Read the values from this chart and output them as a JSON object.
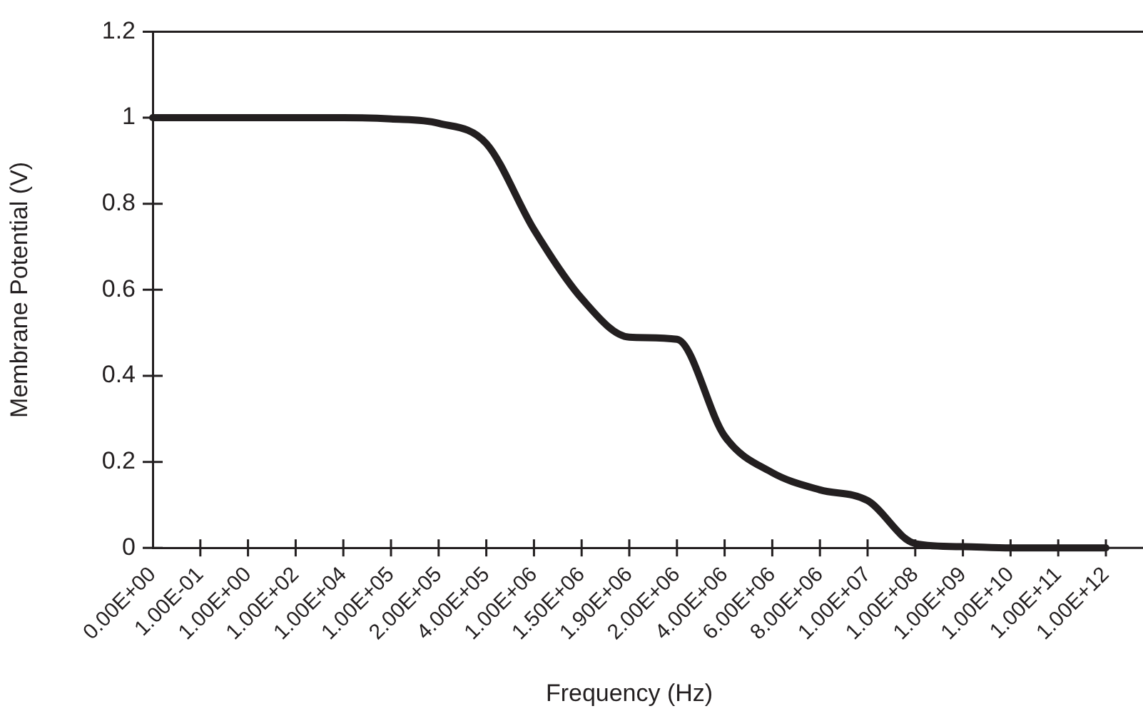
{
  "chart_data": {
    "type": "line",
    "xlabel": "Frequency (Hz)",
    "ylabel": "Membrane Potential (V)",
    "categories": [
      "0.00E+00",
      "1.00E-01",
      "1.00E+00",
      "1.00E+02",
      "1.00E+04",
      "1.00E+05",
      "2.00E+05",
      "4.00E+05",
      "1.00E+06",
      "1.50E+06",
      "1.90E+06",
      "2.00E+06",
      "4.00E+06",
      "6.00E+06",
      "8.00E+06",
      "1.00E+07",
      "1.00E+08",
      "1.00E+09",
      "1.00E+10",
      "1.00E+11",
      "1.00E+12"
    ],
    "series": [
      {
        "color": "#231f20",
        "values": [
          1,
          1,
          1,
          1,
          1,
          0.997,
          0.987,
          0.94,
          0.74,
          0.58,
          0.49,
          0.485,
          0.26,
          0.175,
          0.135,
          0.11,
          0.01,
          0.003,
          0,
          0,
          0
        ]
      }
    ],
    "ylim": [
      0,
      1.2
    ],
    "yticks": [
      0,
      0.2,
      0.4,
      0.6,
      0.8,
      1,
      1.2
    ],
    "grid": false,
    "legend": false,
    "marker": "none",
    "line_style": "solid"
  }
}
